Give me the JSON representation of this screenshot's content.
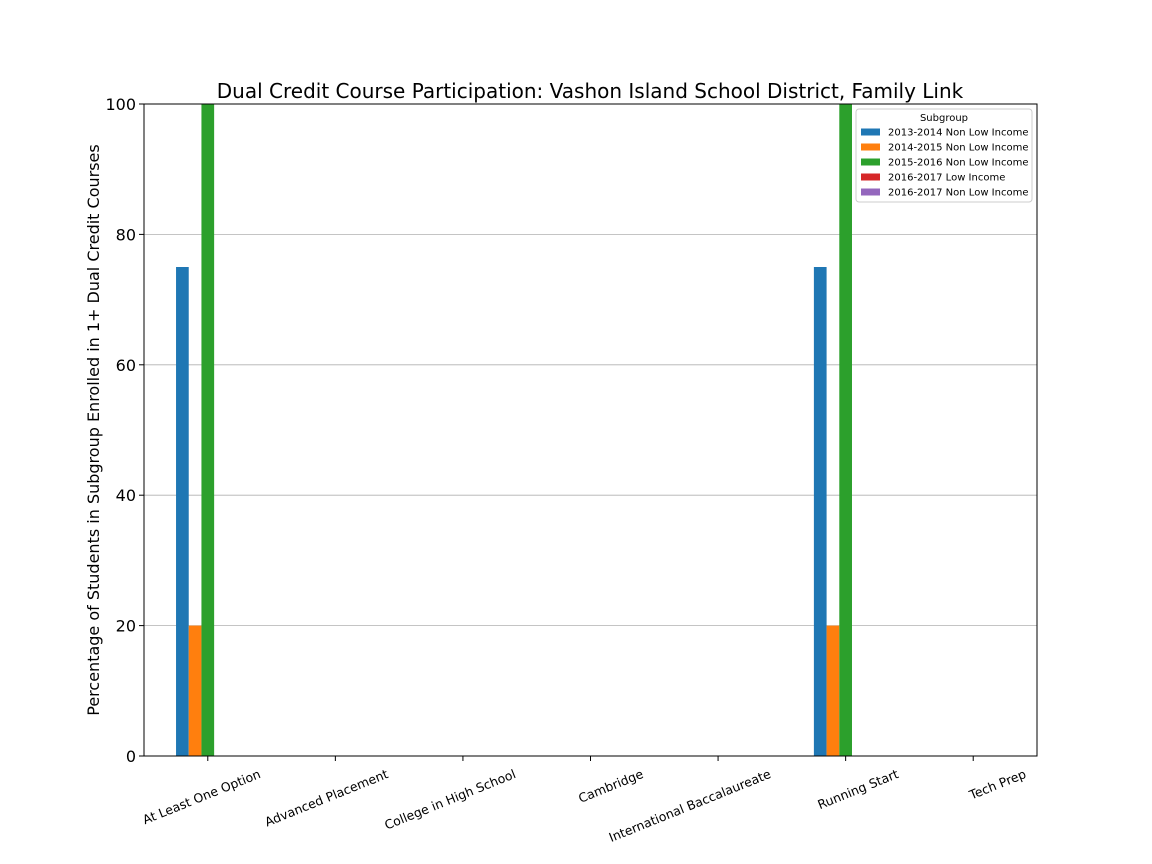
{
  "chart_data": {
    "type": "bar",
    "title": "Dual Credit Course Participation: Vashon Island School District, Family Link",
    "xlabel": "",
    "ylabel": "Percentage of Students in Subgroup Enrolled in 1+ Dual Credit Courses",
    "ylim": [
      0,
      100
    ],
    "yticks": [
      0,
      20,
      40,
      60,
      80,
      100
    ],
    "grid": "horizontal",
    "legend": {
      "title": "Subgroup",
      "placement": "top-right"
    },
    "categories": [
      "At Least One Option",
      "Advanced Placement",
      "College in High School",
      "Cambridge",
      "International Baccalaureate",
      "Running Start",
      "Tech Prep"
    ],
    "series": [
      {
        "name": "2013-2014 Non Low Income",
        "color": "#1f77b4",
        "values": [
          75,
          0,
          0,
          0,
          0,
          75,
          0
        ]
      },
      {
        "name": "2014-2015 Non Low Income",
        "color": "#ff7f0e",
        "values": [
          20,
          0,
          0,
          0,
          0,
          20,
          0
        ]
      },
      {
        "name": "2015-2016 Non Low Income",
        "color": "#2ca02c",
        "values": [
          100,
          0,
          0,
          0,
          0,
          100,
          0
        ]
      },
      {
        "name": "2016-2017 Low Income",
        "color": "#d62728",
        "values": [
          0,
          0,
          0,
          0,
          0,
          0,
          0
        ]
      },
      {
        "name": "2016-2017 Non Low Income",
        "color": "#9467bd",
        "values": [
          0,
          0,
          0,
          0,
          0,
          0,
          0
        ]
      }
    ]
  }
}
